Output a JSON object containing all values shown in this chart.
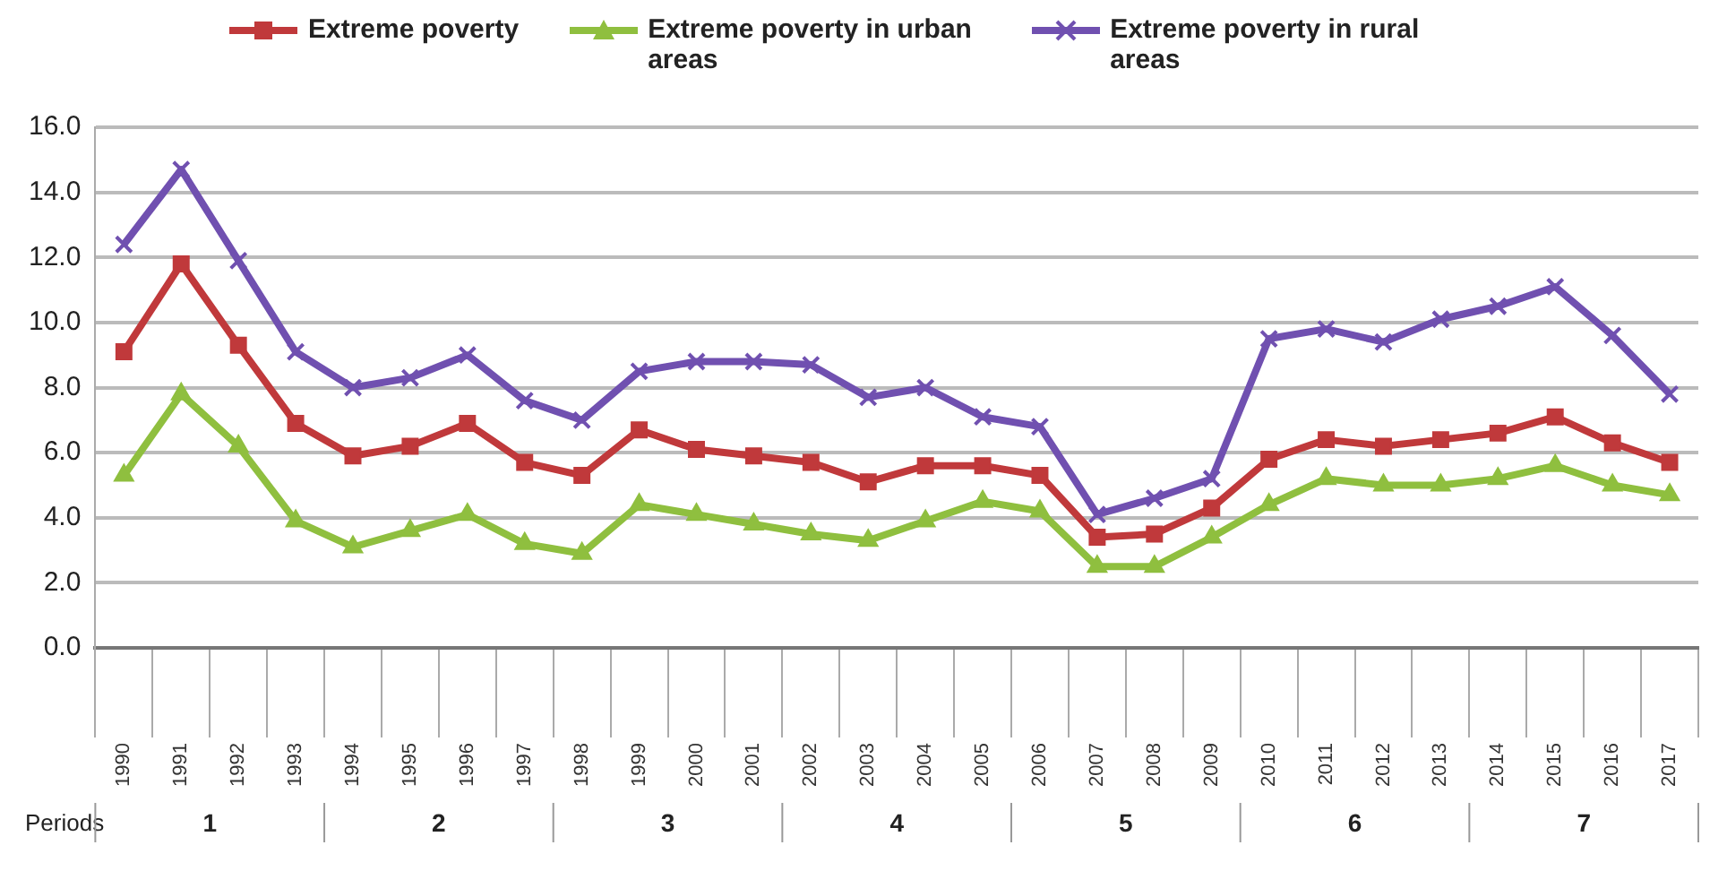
{
  "chart_data": {
    "type": "line",
    "categories": [
      "1990",
      "1991",
      "1992",
      "1993",
      "1994",
      "1995",
      "1996",
      "1997",
      "1998",
      "1999",
      "2000",
      "2001",
      "2002",
      "2003",
      "2004",
      "2005",
      "2006",
      "2007",
      "2008",
      "2009",
      "2010",
      "2011",
      "2012",
      "2013",
      "2014",
      "2015",
      "2016",
      "2017"
    ],
    "series": [
      {
        "name": "Extreme poverty",
        "color": "#c0393b",
        "marker": "square",
        "values": [
          9.1,
          11.8,
          9.3,
          6.9,
          5.9,
          6.2,
          6.9,
          5.7,
          5.3,
          6.7,
          6.1,
          5.9,
          5.7,
          5.1,
          5.6,
          5.6,
          5.3,
          3.4,
          3.5,
          4.3,
          5.8,
          6.4,
          6.2,
          6.4,
          6.6,
          7.1,
          6.3,
          5.7
        ]
      },
      {
        "name": "Extreme poverty in urban areas",
        "color": "#8fbf3f",
        "marker": "triangle",
        "values": [
          5.3,
          7.8,
          6.2,
          3.9,
          3.1,
          3.6,
          4.1,
          3.2,
          2.9,
          4.4,
          4.1,
          3.8,
          3.5,
          3.3,
          3.9,
          4.5,
          4.2,
          2.5,
          2.5,
          3.4,
          4.4,
          5.2,
          5.0,
          5.0,
          5.2,
          5.6,
          5.0,
          4.7
        ]
      },
      {
        "name": "Extreme poverty in rural areas",
        "color": "#7050b0",
        "marker": "cross",
        "values": [
          12.4,
          14.7,
          11.9,
          9.1,
          8.0,
          8.3,
          9.0,
          7.6,
          7.0,
          8.5,
          8.8,
          8.8,
          8.7,
          7.7,
          8.0,
          7.1,
          6.8,
          4.1,
          4.6,
          5.2,
          9.5,
          9.8,
          9.4,
          10.1,
          10.5,
          11.1,
          9.6,
          7.8
        ]
      }
    ],
    "ylim": [
      0,
      16
    ],
    "yticks": [
      {
        "value": 0,
        "label": "0.0"
      },
      {
        "value": 2,
        "label": "2.0"
      },
      {
        "value": 4,
        "label": "4.0"
      },
      {
        "value": 6,
        "label": "6.0"
      },
      {
        "value": 8,
        "label": "8.0"
      },
      {
        "value": 10,
        "label": "10.0"
      },
      {
        "value": 12,
        "label": "12.0"
      },
      {
        "value": 14,
        "label": "14.0"
      },
      {
        "value": 16,
        "label": "16.0"
      }
    ],
    "grid": "y",
    "legend": "top",
    "line_style": "solid",
    "annotations": [
      "Periods",
      "1",
      "2",
      "3",
      "4",
      "5",
      "6",
      "7"
    ]
  }
}
